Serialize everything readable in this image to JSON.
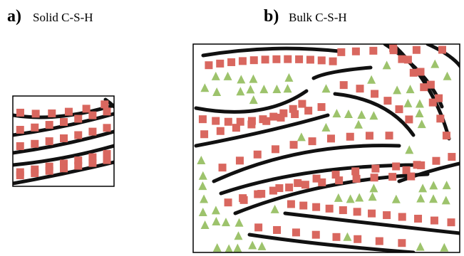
{
  "panels": [
    {
      "letter": "a)",
      "label": "Solid C-S-H"
    },
    {
      "letter": "b)",
      "label": "Bulk C-S-H"
    }
  ]
}
